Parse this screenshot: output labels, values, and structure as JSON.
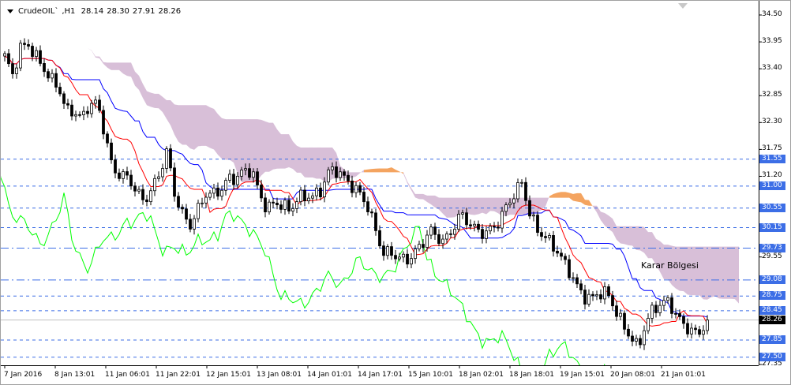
{
  "header": {
    "symbol": "CrudeOIL`",
    "timeframe": "H1",
    "open": "28.14",
    "high": "28.30",
    "low": "27.91",
    "close": "28.26"
  },
  "annotation": "Karar Bölgesi",
  "colors": {
    "bull_candle": "#ffffff",
    "bear_candle": "#000000",
    "tenkan": "#ff0000",
    "kijun": "#0000ff",
    "chikou": "#00ff00",
    "cloud_bear": "#d8bfd8",
    "cloud_bull": "#f4a460",
    "level_line": "#3c6ee6",
    "bid_line": "#c0c0c0"
  },
  "chart_data": {
    "type": "candlestick",
    "indicator": "Ichimoku",
    "ylim": [
      27.35,
      34.5
    ],
    "y_ticks": [
      "34.50",
      "33.95",
      "33.40",
      "32.85",
      "32.30",
      "31.75",
      "31.20",
      "29.55",
      "27.35"
    ],
    "x_ticks": [
      "7 Jan 2016",
      "8 Jan 13:01",
      "11 Jan 06:01",
      "11 Jan 22:01",
      "12 Jan 15:01",
      "13 Jan 08:01",
      "14 Jan 01:01",
      "14 Jan 17:01",
      "15 Jan 10:01",
      "18 Jan 02:01",
      "18 Jan 18:01",
      "19 Jan 15:01",
      "20 Jan 08:01",
      "21 Jan 01:01"
    ],
    "closes_path": [
      33.66,
      33.26,
      33.82,
      33.9,
      33.66,
      33.42,
      33.18,
      33.02,
      32.53,
      32.53,
      32.37,
      32.69,
      32.69,
      32.05,
      31.32,
      31.24,
      31.16,
      30.92,
      30.68,
      30.92,
      31.24,
      31.72,
      30.84,
      30.43,
      30.19,
      30.51,
      30.84,
      30.84,
      30.92,
      31.16,
      31.16,
      31.32,
      31.32,
      30.84,
      30.51,
      30.68,
      30.59,
      30.51,
      30.76,
      30.79,
      30.79,
      30.92,
      31.32,
      31.32,
      31.16,
      31.0,
      30.84,
      30.59,
      30.11,
      29.63,
      29.63,
      29.55,
      29.46,
      29.63,
      29.79,
      30.11,
      29.95,
      29.87,
      30.11,
      30.43,
      30.27,
      30.11,
      30.03,
      30.11,
      30.27,
      30.59,
      30.84,
      31.08,
      30.43,
      30.11,
      29.95,
      29.79,
      29.55,
      29.3,
      28.98,
      28.74,
      28.69,
      28.82,
      28.82,
      28.5,
      28.17,
      27.93,
      27.69,
      28.17,
      28.5,
      28.58,
      28.66,
      28.33,
      28.17,
      28.01,
      28.01,
      28.26
    ],
    "levels": [
      {
        "value": "31.55",
        "style": "dashed"
      },
      {
        "value": "31.00",
        "style": "dashed"
      },
      {
        "value": "30.55",
        "style": "dashed"
      },
      {
        "value": "30.15",
        "style": "dashed"
      },
      {
        "value": "29.73",
        "style": "dashdot"
      },
      {
        "value": "29.08",
        "style": "dashdot"
      },
      {
        "value": "28.75",
        "style": "dashed"
      },
      {
        "value": "28.45",
        "style": "dashed"
      },
      {
        "value": "27.85",
        "style": "dashed"
      },
      {
        "value": "27.50",
        "style": "dashed"
      }
    ],
    "bid": "28.26"
  }
}
